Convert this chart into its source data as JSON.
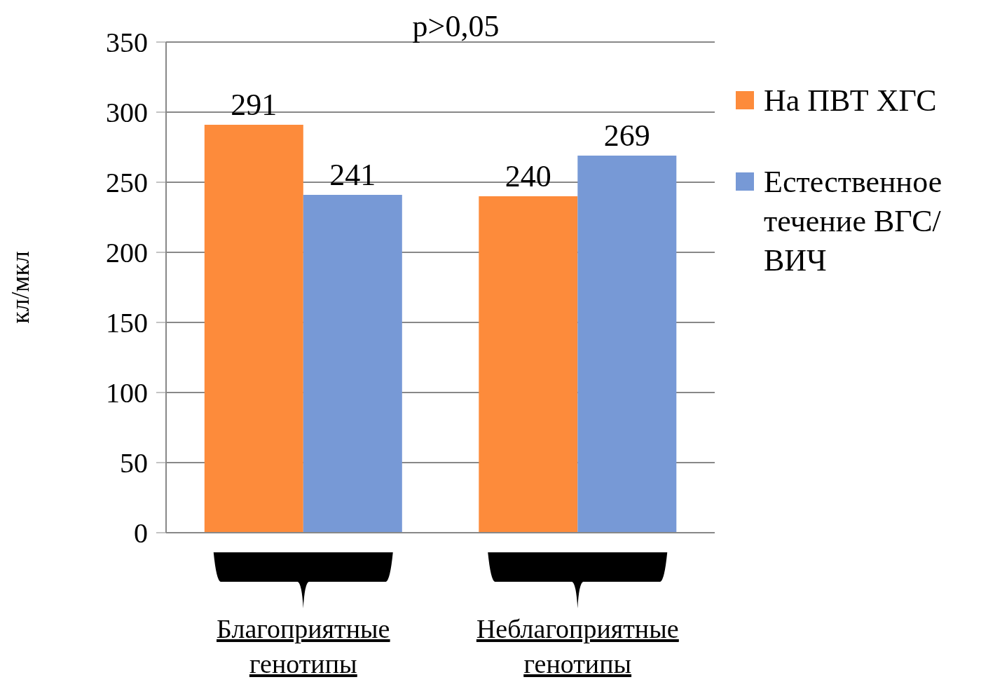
{
  "chart_data": {
    "type": "bar",
    "categories": [
      "Благоприятные генотипы",
      "Неблагоприятные генотипы"
    ],
    "series": [
      {
        "name": "На ПВТ ХГС",
        "color": "#fd8b3b",
        "values": [
          291,
          240
        ]
      },
      {
        "name": "Естественное течение ВГС/ВИЧ",
        "color": "#7799d6",
        "values": [
          241,
          269
        ]
      }
    ],
    "ylabel": "кл/мкл",
    "annotations": [
      "p>0,05"
    ],
    "ylim": [
      0,
      350
    ],
    "yticks": [
      0,
      50,
      100,
      150,
      200,
      250,
      300,
      350
    ],
    "grid": "y",
    "legend": "right",
    "data_labels": true
  }
}
